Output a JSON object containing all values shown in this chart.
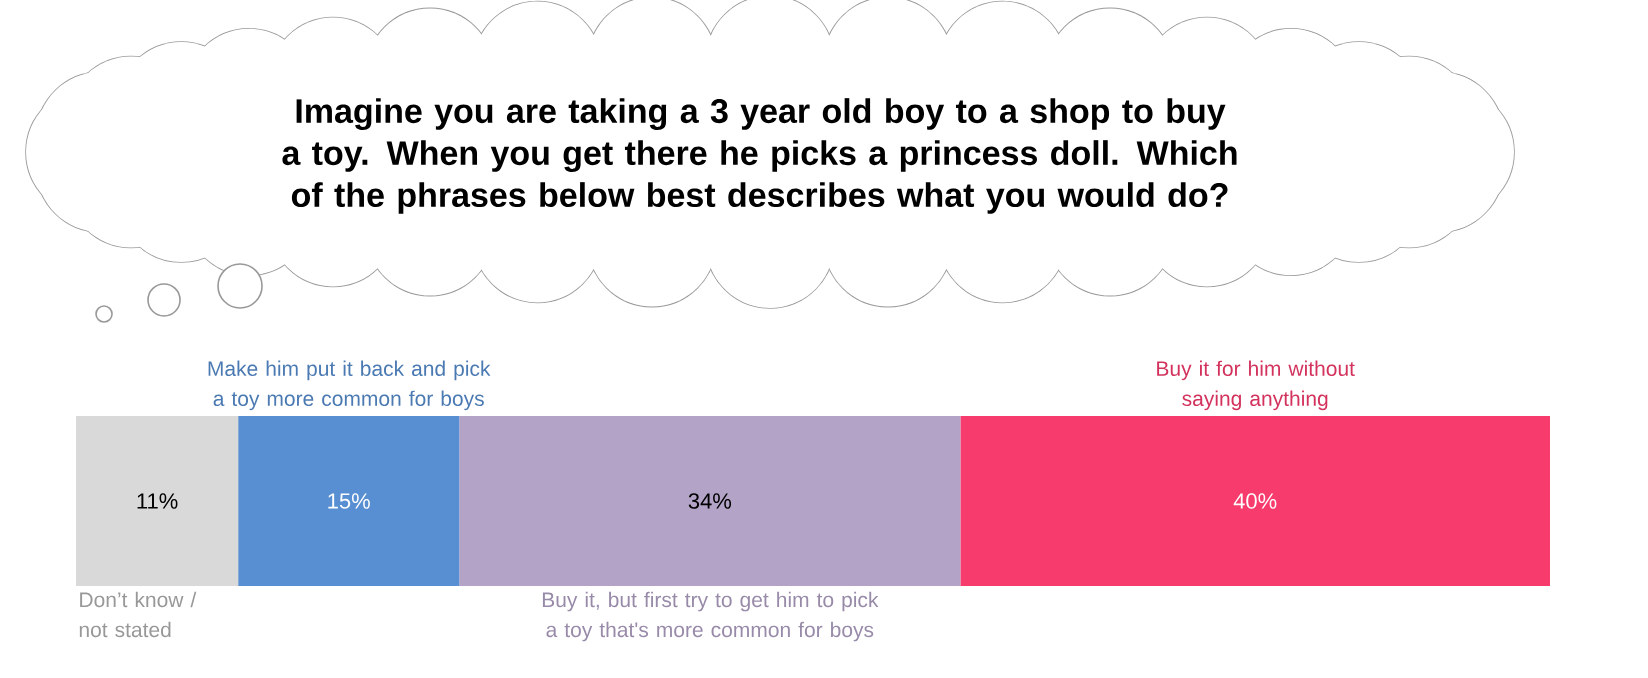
{
  "chart_data": {
    "type": "bar",
    "orientation": "horizontal",
    "stacked": true,
    "title": "Imagine you are taking a 3 year old boy to a shop to buy a toy. When you get there he picks a princess doll. Which of the phrases below best describes what you would do?",
    "categories": [
      null
    ],
    "series": [
      {
        "name": "Don’t know / not stated",
        "color": "#d9d9d9",
        "values": [
          11
        ],
        "value_labels": [
          "11%"
        ]
      },
      {
        "name": "Make him put it back and pick a toy more common for boys",
        "color": "#588fd3",
        "values": [
          15
        ],
        "value_labels": [
          "15%"
        ]
      },
      {
        "name": "Buy it, but first try to get him to pick a toy that's more common for boys",
        "color": "#b3a3c7",
        "values": [
          34
        ],
        "value_labels": [
          "34%"
        ]
      },
      {
        "name": "Buy it for him without saying anything",
        "color": "#f83b6d",
        "values": [
          40
        ],
        "value_labels": [
          "40%"
        ]
      }
    ]
  }
}
